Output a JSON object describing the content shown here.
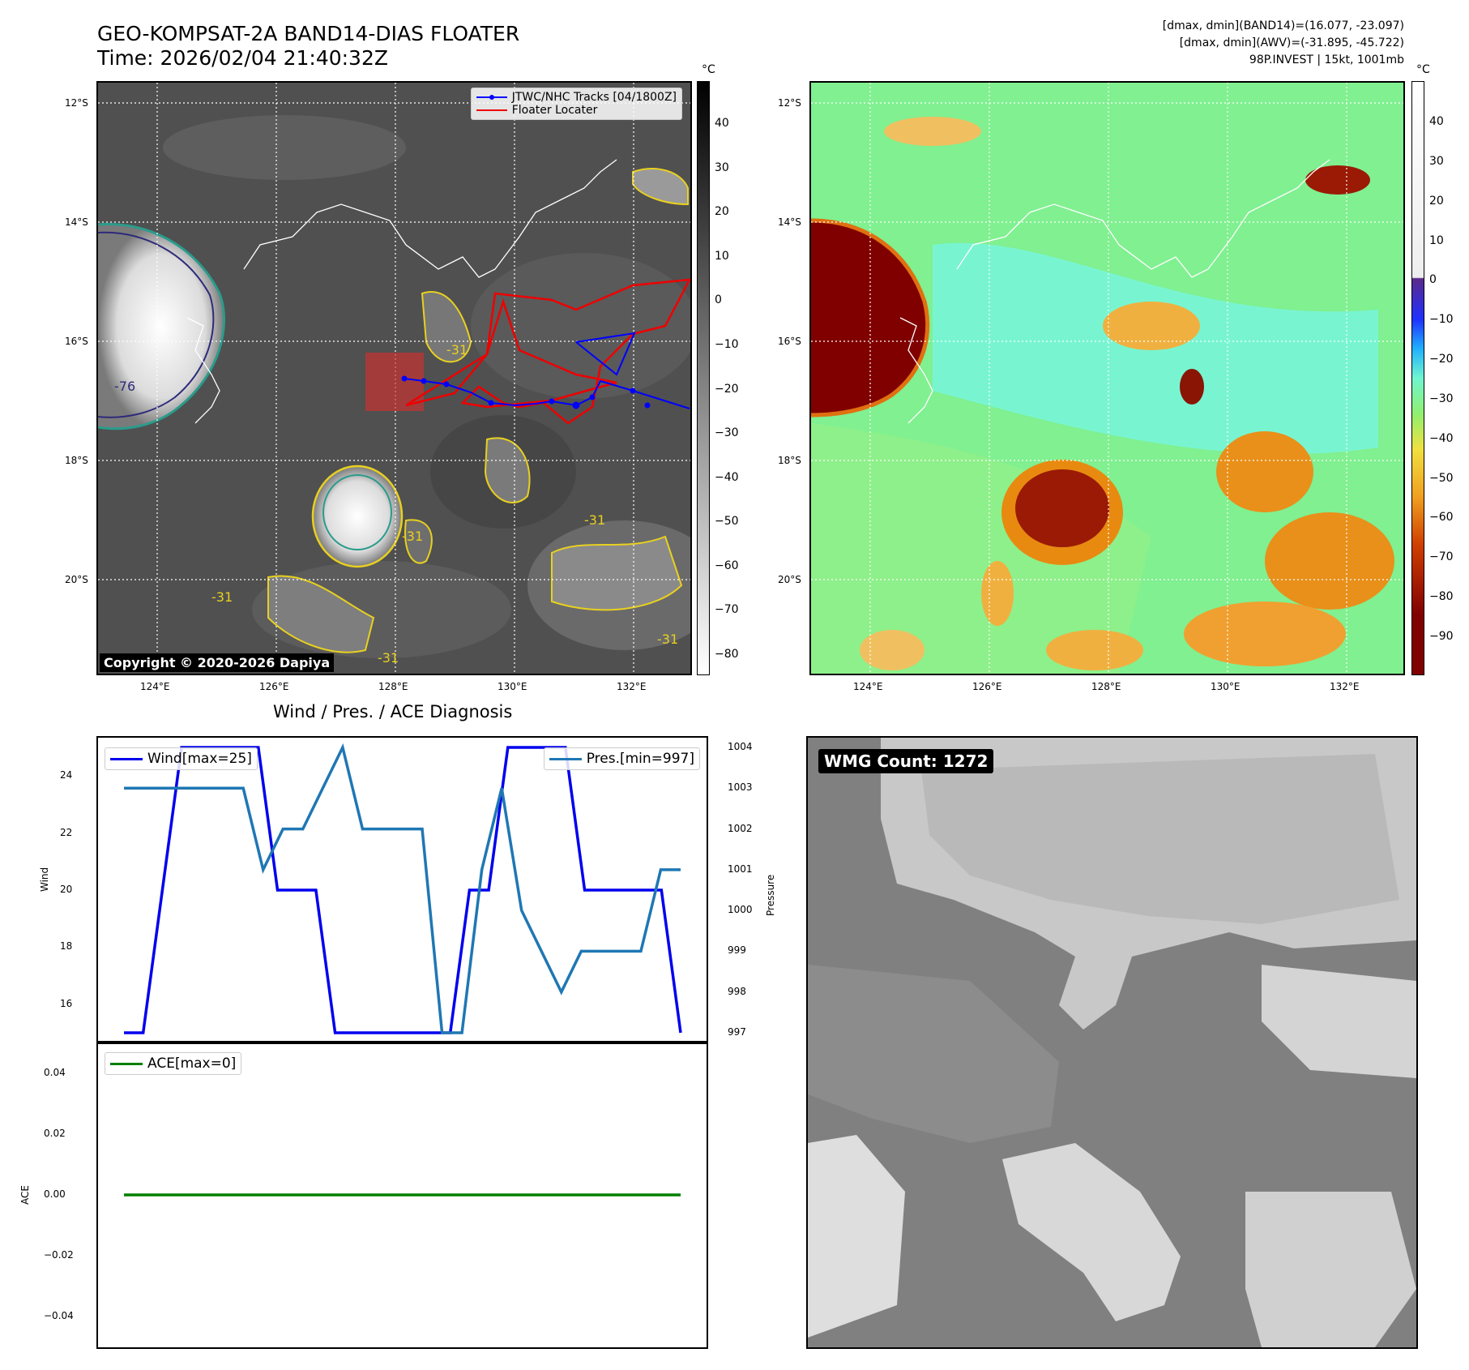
{
  "header": {
    "title_line1": "GEO-KOMPSAT-2A BAND14-DIAS FLOATER",
    "title_line2": "Time: 2026/02/04 21:40:32Z",
    "stat_line1": "[dmax, dmin](BAND14)=(16.077, -23.097)",
    "stat_line2": "[dmax, dmin](AWV)=(-31.895, -45.722)",
    "stat_line3": "98P.INVEST | 15kt, 1001mb"
  },
  "map_left": {
    "lat_labels": [
      "12°S",
      "14°S",
      "16°S",
      "18°S",
      "20°S"
    ],
    "lon_labels": [
      "124°E",
      "126°E",
      "128°E",
      "130°E",
      "132°E"
    ],
    "legend": [
      "JTWC/NHC Tracks [04/1800Z]",
      "Floater Locater"
    ],
    "copyright": "Copyright © 2020-2026 Dapiya",
    "contour_labels": [
      "-31",
      "-31",
      "-31",
      "-76",
      "-31",
      "-31",
      "-31"
    ],
    "colorbar_unit": "°C",
    "colorbar_ticks": [
      "40",
      "30",
      "20",
      "10",
      "0",
      "−10",
      "−20",
      "−30",
      "−40",
      "−50",
      "−60",
      "−70",
      "−80"
    ]
  },
  "map_right": {
    "lat_labels": [
      "12°S",
      "14°S",
      "16°S",
      "18°S",
      "20°S"
    ],
    "lon_labels": [
      "124°E",
      "126°E",
      "128°E",
      "130°E",
      "132°E"
    ],
    "colorbar_unit": "°C",
    "colorbar_ticks": [
      "40",
      "30",
      "20",
      "10",
      "0",
      "−10",
      "−20",
      "−30",
      "−40",
      "−50",
      "−60",
      "−70",
      "−80",
      "−90"
    ]
  },
  "diagnosis": {
    "title": "Wind / Pres. / ACE Diagnosis",
    "wind_legend": "Wind[max=25]",
    "pres_legend": "Pres.[min=997]",
    "ace_legend": "ACE[max=0]",
    "wind_axis_label": "Wind",
    "pres_axis_label": "Pressure",
    "ace_axis_label": "ACE"
  },
  "wmg": {
    "label": "WMG Count: 1272"
  },
  "colors": {
    "wind": "#0000ee",
    "pressure": "#1f77b4",
    "ace": "#008000",
    "track": "#0000ff",
    "floater": "#ee0000"
  },
  "chart_data": [
    {
      "type": "line",
      "name": "wind",
      "ylabel": "Wind",
      "ylim": [
        15,
        25
      ],
      "yticks": [
        16,
        18,
        20,
        22,
        24
      ],
      "series": [
        {
          "name": "Wind[max=25]",
          "values": [
            15,
            15,
            20,
            25,
            25,
            25,
            25,
            25,
            20,
            20,
            20,
            15,
            15,
            15,
            15,
            15,
            15,
            15,
            20,
            20,
            25,
            25,
            25,
            25,
            20,
            20,
            20,
            20,
            20,
            15
          ]
        }
      ]
    },
    {
      "type": "line",
      "name": "pressure",
      "ylabel": "Pressure",
      "ylim": [
        997,
        1004
      ],
      "yticks": [
        997,
        998,
        999,
        1000,
        1001,
        1002,
        1003,
        1004
      ],
      "series": [
        {
          "name": "Pres.[min=997]",
          "values": [
            1003,
            1003,
            1003,
            1003,
            1003,
            1003,
            1003,
            1001,
            1002,
            1002,
            1003,
            1004,
            1002,
            1002,
            1002,
            1002,
            997,
            997,
            1001,
            1003,
            1000,
            999,
            998,
            999,
            999,
            999,
            999,
            1001,
            1001
          ]
        }
      ]
    },
    {
      "type": "line",
      "name": "ace",
      "ylabel": "ACE",
      "ylim": [
        -0.05,
        0.05
      ],
      "yticks": [
        -0.04,
        -0.02,
        0.0,
        0.02,
        0.04
      ],
      "ytick_labels": [
        "−0.04",
        "−0.02",
        "0.00",
        "0.02",
        "0.04"
      ],
      "series": [
        {
          "name": "ACE[max=0]",
          "values": [
            0,
            0,
            0,
            0,
            0,
            0,
            0,
            0,
            0,
            0,
            0,
            0,
            0,
            0,
            0,
            0,
            0,
            0,
            0,
            0,
            0,
            0,
            0,
            0,
            0,
            0,
            0,
            0,
            0,
            0
          ]
        }
      ]
    }
  ]
}
